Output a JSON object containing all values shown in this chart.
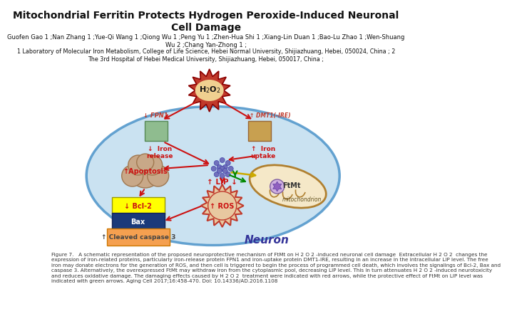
{
  "title": "Mitochondrial Ferritin Protects Hydrogen Peroxide-Induced Neuronal\nCell Damage",
  "authors": "Guofen Gao 1 ;Nan Zhang 1 ;Yue-Qi Wang 1 ;Qiong Wu 1 ;Peng Yu 1 ;Zhen-Hua Shi 1 ;Xiang-Lin Duan 1 ;Bao-Lu Zhao 1 ;Wen-Shuang\nWu 2 ;Chang Yan-Zhong 1 ;",
  "affiliations": "1 Laboratory of Molecular Iron Metabolism, College of Life Science, Hebei Normal University, Shijiazhuang, Hebei, 050024, China ; 2\nThe 3rd Hospital of Hebei Medical University, Shijiazhuang, Hebei, 050017, China ;",
  "figure_caption": "Figure 7.   A schematic representation of the proposed neuroprotective mechanism of FtMt on H 2 O 2 -induced neuronal cell damage  Extracellular H 2 O 2  changes the\nexpression of iron-related proteins, particularly iron-release protein FPN1 and iron-uptake protein DMT1-IRE, resulting in an increase in the intracellular LIP level. The free\niron may donate electrons for the generation of ROS, and then cell is triggered to begin the process of programmed cell death, which involves the signalings of Bcl-2, Bax and\ncaspase 3. Alternatively, the overexpressed FtMt may withdraw iron from the cytoplasmic pool, decreasing LIP level. This in turn attenuates H 2 O 2 -induced neurotoxicity\nand reduces oxidative damage. The damaging effects caused by H 2 O 2  treatment were indicated with red arrows, while the protective effect of FtMt on LIP level was\nindicated with green arrows. Aging Cell 2017;16:458-470. Doi: 10.14336/AD.2016.1108",
  "background_color": "#ffffff",
  "title_fontsize": 10,
  "authors_fontsize": 6.0,
  "affiliations_fontsize": 5.8,
  "caption_fontsize": 5.2,
  "neuron_color": "#c5dff0",
  "neuron_border": "#5599cc",
  "mito_color": "#f5e8c8",
  "mito_border": "#c8a050",
  "h2o2_outer_color": "#c0392b",
  "h2o2_inner_color": "#f0d090",
  "fpn1_box_color": "#8fbc8f",
  "dmt1_box_color": "#c8a050",
  "lip_dot_color": "#7070c0",
  "ros_color": "#c0392b",
  "ros_fill": "#e8c8a0",
  "apoptosis_cloud_color": "#c8a888",
  "bcl2_box_color": "#ffff00",
  "bax_box_color": "#1a3a7a",
  "caspase_box_color": "#f5a050",
  "arrow_red": "#cc1111",
  "arrow_green": "#008800",
  "arrow_yellow": "#ccaa00"
}
